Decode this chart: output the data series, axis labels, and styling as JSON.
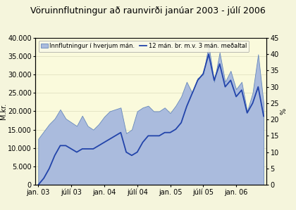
{
  "title": "Vöruinnflutningur að raunvirði janúar 2003 - júlí 2006",
  "ylabel_left": "M.kr.",
  "ylabel_right": "%",
  "bg_color": "#F5F5DC",
  "plot_bg_color": "#FAFADC",
  "bar_color": "#AABBDD",
  "bar_edge_color": "#6688BB",
  "line_color": "#2244AA",
  "legend_bar": "Innflutningur í hverjum mán.",
  "legend_line": "12 mán. br. m.v. 3 mán. meðaltal",
  "tick_labels": [
    "jan. 03",
    "júlí 03",
    "jan. 04",
    "júlí 04",
    "jan. 05",
    "júlí 05",
    "jan. 06"
  ],
  "ylim_left": [
    0,
    40000
  ],
  "ylim_right": [
    0,
    45
  ],
  "yticks_left": [
    0,
    5000,
    10000,
    15000,
    20000,
    25000,
    30000,
    35000,
    40000
  ],
  "yticks_right": [
    0,
    5,
    10,
    15,
    20,
    25,
    30,
    35,
    40,
    45
  ],
  "bar_values": [
    12500,
    14500,
    16500,
    18000,
    20500,
    18000,
    17000,
    16000,
    18800,
    16000,
    15000,
    16500,
    18500,
    20000,
    20500,
    21000,
    14000,
    15000,
    20000,
    21000,
    21500,
    20000,
    20000,
    21000,
    19500,
    21500,
    24000,
    28000,
    25000,
    29000,
    30000,
    38000,
    28000,
    36000,
    28000,
    31000,
    26000,
    28000,
    20000,
    25000,
    35500,
    22000
  ],
  "line_values": [
    0,
    2,
    5,
    9,
    12,
    12,
    11,
    10,
    11,
    11,
    11,
    12,
    13,
    14,
    15,
    16,
    10,
    9,
    10,
    13,
    15,
    15,
    15,
    16,
    16,
    17,
    19,
    24,
    28,
    32,
    34,
    40,
    32,
    37,
    30,
    32,
    27,
    29,
    22,
    25,
    30,
    21
  ],
  "n_months": 42,
  "title_fontsize": 9,
  "tick_fontsize": 7,
  "legend_fontsize": 6
}
